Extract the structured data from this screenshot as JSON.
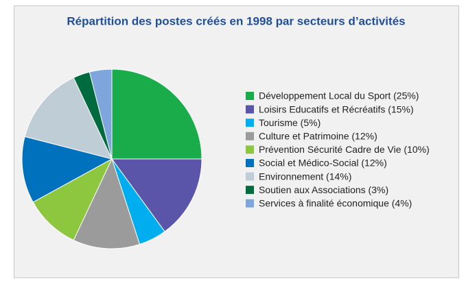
{
  "chart_data": {
    "type": "pie",
    "title": "Répartition des postes créés en 1998 par secteurs d’activités",
    "categories": [
      "Développement Local du Sport (25%)",
      "Loisirs Educatifs et Récréatifs (15%)",
      "Tourisme (5%)",
      "Culture et Patrimoine (12%)",
      "Prévention Sécurité Cadre de Vie (10%)",
      "Social et Médico-Social (12%)",
      "Environnement (14%)",
      "Soutien aux Associations (3%)",
      "Services à finalité économique (4%)"
    ],
    "values": [
      25,
      15,
      5,
      12,
      10,
      12,
      14,
      3,
      4
    ],
    "colors": [
      "#1aab4b",
      "#5a55a8",
      "#00aeef",
      "#9b9b9b",
      "#8dc63f",
      "#0071bc",
      "#bfcdd6",
      "#006b3f",
      "#7ea6dc"
    ],
    "legend": "right"
  }
}
